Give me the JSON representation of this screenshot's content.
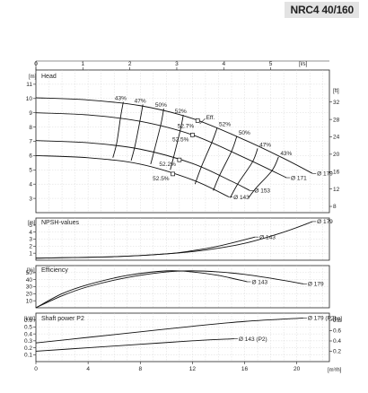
{
  "header": {
    "title": "NRC4 40/160"
  },
  "chart_data": [
    {
      "panel": "head",
      "type": "line",
      "title": "Head",
      "ylabel": "[m]",
      "ylabel_right": "[ft]",
      "xlabel_top": "[l/s]",
      "xlim_top": [
        0,
        6
      ],
      "xticks_top": [
        0,
        1,
        2,
        3,
        4,
        5
      ],
      "ylim": [
        2,
        12
      ],
      "yticks": [
        3,
        4,
        5,
        6,
        7,
        8,
        9,
        10,
        11
      ],
      "yticks_right": [
        8,
        12,
        16,
        20,
        24,
        28,
        32
      ],
      "ft_per_m": 3.281,
      "xlim": [
        0,
        22.5
      ],
      "series": [
        {
          "name": "Ø 179",
          "x": [
            0,
            4,
            8,
            12,
            16,
            19,
            21.2
          ],
          "y": [
            10.05,
            9.9,
            9.5,
            8.6,
            7.1,
            5.8,
            4.75
          ]
        },
        {
          "name": "Ø 171",
          "x": [
            0,
            4,
            8,
            12,
            16,
            19.2
          ],
          "y": [
            9.0,
            8.85,
            8.4,
            7.45,
            5.85,
            4.45
          ]
        },
        {
          "name": "Ø 153",
          "x": [
            0,
            4,
            8,
            12,
            15,
            16.4
          ],
          "y": [
            7.05,
            6.9,
            6.45,
            5.45,
            4.2,
            3.55
          ]
        },
        {
          "name": "Ø 143",
          "x": [
            0,
            4,
            8,
            12,
            14.8
          ],
          "y": [
            6.0,
            5.85,
            5.4,
            4.3,
            3.1
          ]
        }
      ],
      "efficiency_contours": [
        {
          "label": "43%",
          "x": [
            6.7,
            6.5,
            6.2,
            5.9
          ],
          "y": [
            9.76,
            8.75,
            6.9,
            5.85
          ]
        },
        {
          "label": "47%",
          "x": [
            8.2,
            8.0,
            7.6,
            7.3
          ],
          "y": [
            9.58,
            8.55,
            6.7,
            5.65
          ]
        },
        {
          "name": "50%",
          "label": "50%",
          "x": [
            9.8,
            9.6,
            9.1,
            8.8
          ],
          "y": [
            9.3,
            8.27,
            6.45,
            5.4
          ]
        },
        {
          "label": "52%",
          "x": [
            11.3,
            11.1,
            10.6,
            10.3
          ],
          "y": [
            8.85,
            7.9,
            6.05,
            5.0
          ]
        },
        {
          "label": "52%",
          "x": [
            13.9,
            13.5,
            12.7,
            12.2
          ],
          "y": [
            7.95,
            6.95,
            5.25,
            4.0
          ]
        },
        {
          "label": "50%",
          "x": [
            15.4,
            15.0,
            14.1,
            13.6
          ],
          "y": [
            7.35,
            6.3,
            4.65,
            3.55
          ]
        },
        {
          "label": "47%",
          "x": [
            17.0,
            16.6,
            15.5,
            14.9
          ],
          "y": [
            6.5,
            5.55,
            4.05,
            3.05
          ]
        },
        {
          "label": "43%",
          "x": [
            18.6,
            18.1,
            16.9,
            16.3
          ],
          "y": [
            5.9,
            4.95,
            3.75,
            3.05
          ]
        }
      ],
      "eff_labels": [
        "52.7%",
        "52.5%",
        "52.2%",
        "52.5%"
      ],
      "eff_marker_label": "Eff."
    },
    {
      "panel": "npsh",
      "type": "line",
      "title": "NPSH-values",
      "ylabel": "[m]",
      "ylim": [
        0,
        6
      ],
      "yticks": [
        1,
        2,
        3,
        4,
        5
      ],
      "series": [
        {
          "name": "Ø 179",
          "x": [
            0,
            6,
            10,
            13,
            16,
            19,
            21.2
          ],
          "y": [
            0.3,
            0.5,
            0.9,
            1.45,
            2.4,
            4.0,
            5.5
          ]
        },
        {
          "name": "Ø 143",
          "x": [
            0,
            6,
            10,
            12,
            14,
            16.8
          ],
          "y": [
            0.3,
            0.5,
            0.9,
            1.35,
            2.0,
            3.3
          ]
        }
      ]
    },
    {
      "panel": "efficiency",
      "type": "line",
      "title": "Efficiency",
      "ylabel": "[%]",
      "ylim": [
        0,
        60
      ],
      "yticks": [
        10,
        20,
        30,
        40,
        50
      ],
      "series": [
        {
          "name": "Ø 179",
          "x": [
            0,
            2,
            4,
            7,
            10,
            12,
            14,
            16,
            18,
            20.5
          ],
          "y": [
            0,
            17,
            30,
            43,
            51,
            52.5,
            51,
            47.5,
            42,
            34
          ]
        },
        {
          "name": "Ø 143",
          "x": [
            0,
            2,
            4,
            7,
            10,
            12,
            14,
            16.2
          ],
          "y": [
            0,
            20,
            33,
            46,
            52.5,
            51,
            46,
            37
          ]
        }
      ]
    },
    {
      "panel": "power",
      "type": "line",
      "title": "Shaft power P2",
      "ylabel": "[kW]",
      "ylabel_right": "[hp]",
      "xlabel": "[m³/h]",
      "xlim": [
        0,
        22.5
      ],
      "xticks": [
        0,
        4,
        8,
        12,
        16,
        20
      ],
      "ylim": [
        0,
        0.7
      ],
      "yticks": [
        0.1,
        0.2,
        0.3,
        0.4,
        0.5,
        0.6
      ],
      "yticks_right": [
        0.2,
        0.4,
        0.6,
        0.8
      ],
      "hp_per_kw": 1.341,
      "series": [
        {
          "name": "Ø 179 (P2)",
          "x": [
            0,
            4,
            8,
            12,
            16,
            20.5
          ],
          "y": [
            0.27,
            0.35,
            0.43,
            0.51,
            0.58,
            0.63
          ]
        },
        {
          "name": "Ø 143 (P2)",
          "x": [
            0,
            4,
            8,
            12,
            15.2
          ],
          "y": [
            0.15,
            0.2,
            0.25,
            0.3,
            0.33
          ]
        }
      ]
    }
  ]
}
